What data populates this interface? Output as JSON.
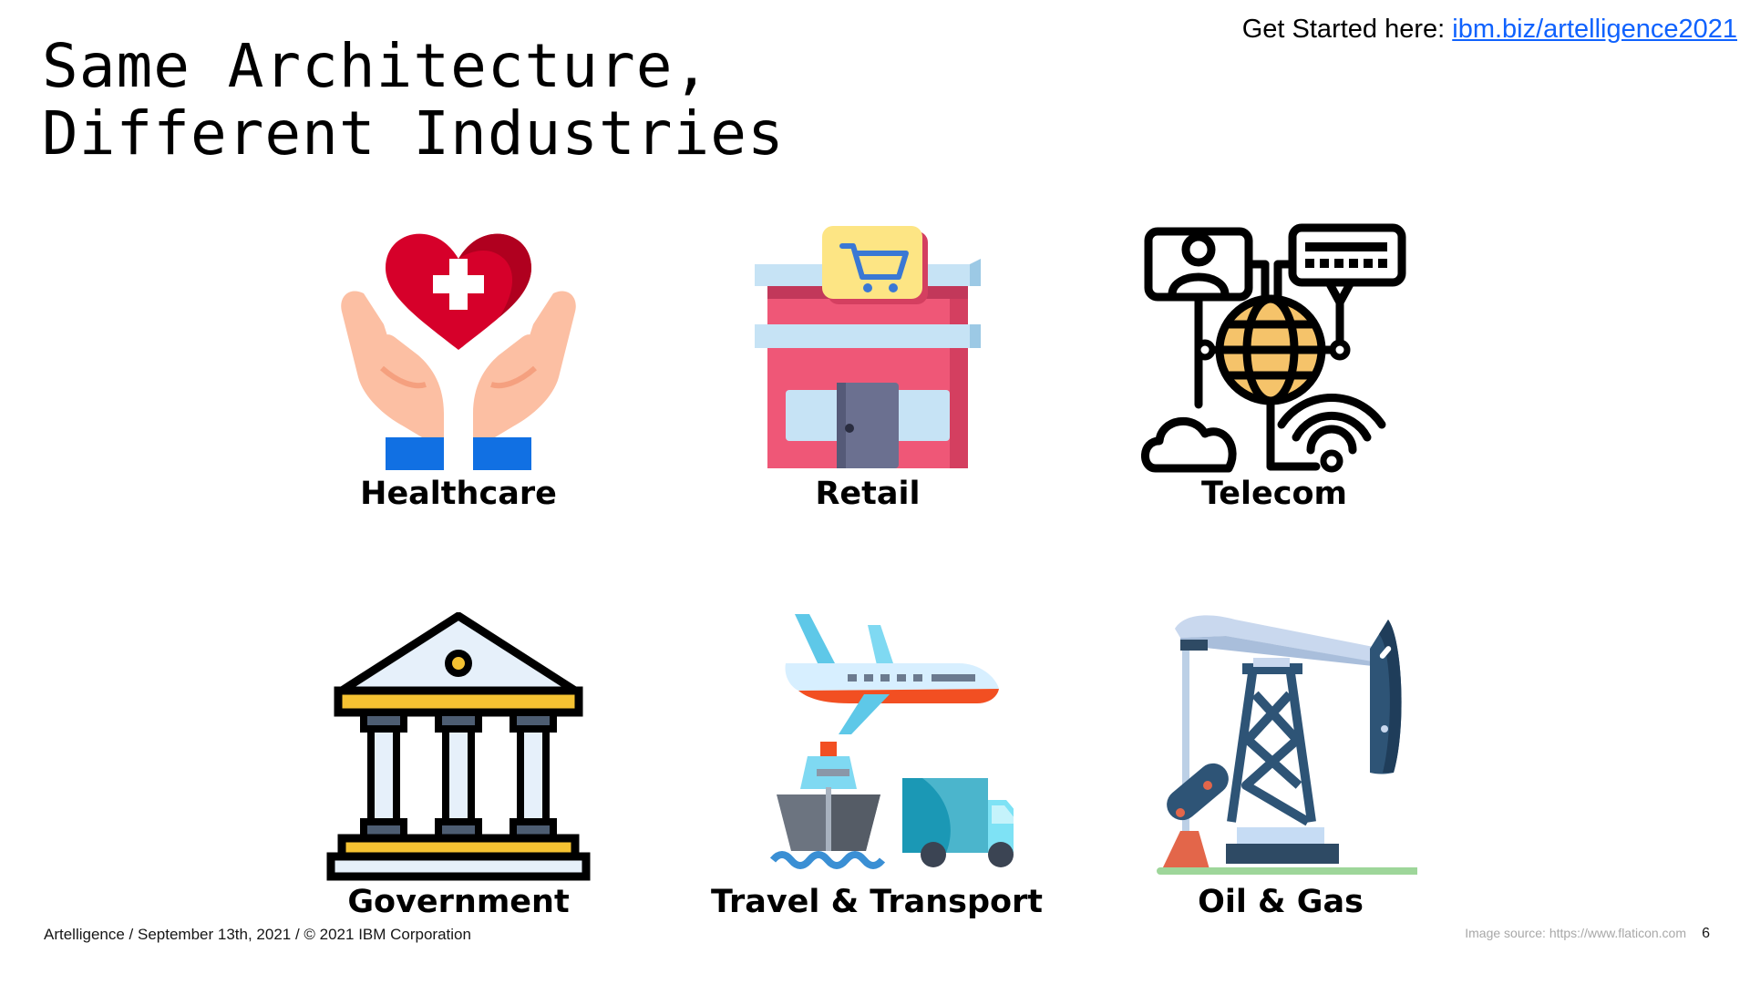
{
  "title": {
    "line1": "Same Architecture,",
    "line2": "Different Industries"
  },
  "header": {
    "get_started_label": "Get Started here: ",
    "link_text": "ibm.biz/artelligence2021"
  },
  "industries": [
    {
      "label": "Healthcare",
      "icon": "heart-hands-icon"
    },
    {
      "label": "Retail",
      "icon": "store-icon"
    },
    {
      "label": "Telecom",
      "icon": "network-globe-icon"
    },
    {
      "label": "Government",
      "icon": "government-building-icon"
    },
    {
      "label": "Travel & Transport",
      "icon": "plane-ship-truck-icon"
    },
    {
      "label": "Oil & Gas",
      "icon": "oil-pump-icon"
    }
  ],
  "footer": {
    "text": "Artelligence / September 13th, 2021 / © 2021 IBM Corporation",
    "image_source": "Image source: https://www.flaticon.com",
    "page_number": "6"
  },
  "colors": {
    "link": "#0f62fe",
    "heart": "#e0122e",
    "retail_pink": "#ef5777",
    "blue_cuffs": "#1170e3"
  }
}
